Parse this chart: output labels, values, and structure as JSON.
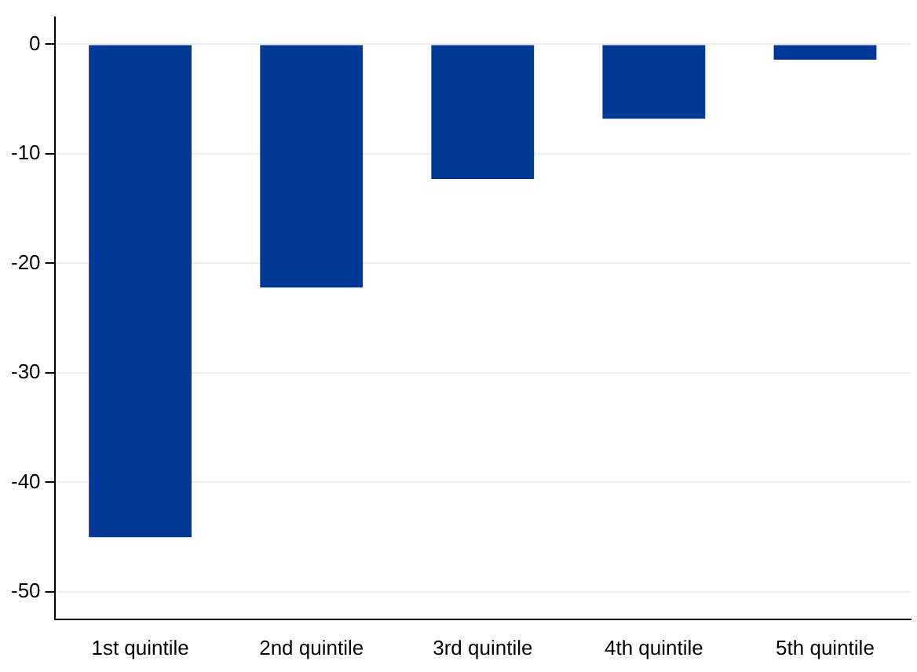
{
  "chart_data": {
    "type": "bar",
    "categories": [
      "1st quintile",
      "2nd quintile",
      "3rd quintile",
      "4th quintile",
      "5th quintile"
    ],
    "values": [
      -45.0,
      -22.2,
      -12.3,
      -6.8,
      -1.4
    ],
    "color": "#003896",
    "ylim": [
      -52.5,
      2.5
    ],
    "yticks": [
      0,
      -10,
      -20,
      -30,
      -40,
      -50
    ],
    "grid": "y"
  }
}
